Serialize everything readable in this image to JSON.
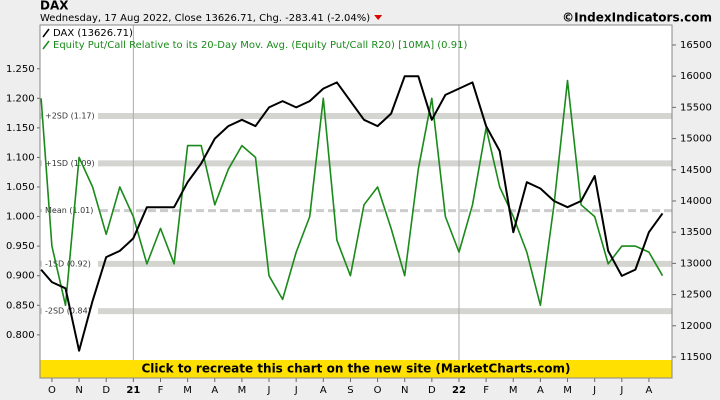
{
  "chart_data": {
    "type": "line",
    "title": "DAX",
    "subtitle": "Wednesday, 17 Aug 2022, Close 13626.71, Chg. -283.41 (-2.04%)",
    "source": "©IndexIndicators.com",
    "banner": "Click to recreate this chart on the new site (MarketCharts.com)",
    "x": [
      -0.4,
      0,
      0.5,
      1,
      1.5,
      2,
      2.5,
      3,
      3.5,
      4,
      4.5,
      5,
      5.5,
      6,
      6.5,
      7,
      7.5,
      8,
      8.5,
      9,
      9.5,
      10,
      10.5,
      11,
      11.5,
      12,
      12.5,
      13,
      13.5,
      14,
      14.5,
      15,
      15.5,
      16,
      16.5,
      17,
      17.5,
      18,
      18.5,
      19,
      19.5,
      20,
      20.5,
      21,
      21.5,
      22,
      22.5
    ],
    "xlim": [
      -0.44,
      22.85
    ],
    "xticks": [
      {
        "value": 0,
        "label": "O"
      },
      {
        "value": 1,
        "label": "N"
      },
      {
        "value": 2,
        "label": "D"
      },
      {
        "value": 3,
        "label": "21"
      },
      {
        "value": 4,
        "label": "F"
      },
      {
        "value": 5,
        "label": "M"
      },
      {
        "value": 6,
        "label": "A"
      },
      {
        "value": 7,
        "label": "M"
      },
      {
        "value": 8,
        "label": "J"
      },
      {
        "value": 9,
        "label": "J"
      },
      {
        "value": 10,
        "label": "A"
      },
      {
        "value": 11,
        "label": "S"
      },
      {
        "value": 12,
        "label": "O"
      },
      {
        "value": 13,
        "label": "N"
      },
      {
        "value": 14,
        "label": "D"
      },
      {
        "value": 15,
        "label": "22"
      },
      {
        "value": 16,
        "label": "F"
      },
      {
        "value": 17,
        "label": "M"
      },
      {
        "value": 18,
        "label": "A"
      },
      {
        "value": 19,
        "label": "M"
      },
      {
        "value": 20,
        "label": "J"
      },
      {
        "value": 21,
        "label": "J"
      },
      {
        "value": 22,
        "label": "A"
      }
    ],
    "year_lines": [
      3,
      15
    ],
    "ylim": [
      0.727,
      1.324
    ],
    "yticks": [
      {
        "value": 0.8,
        "label": "0.800"
      },
      {
        "value": 0.85,
        "label": "0.850"
      },
      {
        "value": 0.9,
        "label": "0.900"
      },
      {
        "value": 0.95,
        "label": "0.950"
      },
      {
        "value": 1.0,
        "label": "1.000"
      },
      {
        "value": 1.05,
        "label": "1.050"
      },
      {
        "value": 1.1,
        "label": "1.100"
      },
      {
        "value": 1.15,
        "label": "1.150"
      },
      {
        "value": 1.2,
        "label": "1.200"
      },
      {
        "value": 1.25,
        "label": "1.250"
      }
    ],
    "y2lim": [
      11163,
      16820
    ],
    "y2ticks": [
      11500,
      12000,
      12500,
      13000,
      13500,
      14000,
      14500,
      15000,
      15500,
      16000,
      16500
    ],
    "bands": [
      {
        "label": "+2SD (1.17)",
        "value": 1.17
      },
      {
        "label": "+1SD (1.09)",
        "value": 1.09
      },
      {
        "label": "Mean (1.01)",
        "value": 1.01,
        "dashed": true
      },
      {
        "label": "-1SD (0.92)",
        "value": 0.92
      },
      {
        "label": "-2SD (0.84)",
        "value": 0.84
      }
    ],
    "series": [
      {
        "name": "DAX (13626.71)",
        "color": "#000000",
        "axis": "y2",
        "values": [
          12900,
          12700,
          12600,
          11600,
          12400,
          13100,
          13200,
          13400,
          13900,
          13900,
          13900,
          14300,
          14600,
          15000,
          15200,
          15300,
          15200,
          15500,
          15600,
          15500,
          15600,
          15800,
          15900,
          15600,
          15300,
          15200,
          15400,
          16000,
          16000,
          15300,
          15700,
          15800,
          15900,
          15200,
          14800,
          13500,
          14300,
          14200,
          14000,
          13900,
          14000,
          14400,
          13200,
          12800,
          12900,
          13500,
          13800
        ]
      },
      {
        "name": "Equity Put/Call Relative to its 20-Day Mov. Avg. (Equity Put/Call R20) [10MA] (0.91)",
        "color": "#1a8a1a",
        "values": [
          1.2,
          0.95,
          0.85,
          1.1,
          1.05,
          0.97,
          1.05,
          1.0,
          0.92,
          0.98,
          0.92,
          1.12,
          1.12,
          1.02,
          1.08,
          1.12,
          1.1,
          0.9,
          0.86,
          0.94,
          1.0,
          1.2,
          0.96,
          0.9,
          1.02,
          1.05,
          0.98,
          0.9,
          1.08,
          1.2,
          1.0,
          0.94,
          1.02,
          1.15,
          1.05,
          1.0,
          0.94,
          0.85,
          1.02,
          1.23,
          1.02,
          1.0,
          0.92,
          0.95,
          0.95,
          0.94,
          0.9
        ]
      }
    ]
  }
}
